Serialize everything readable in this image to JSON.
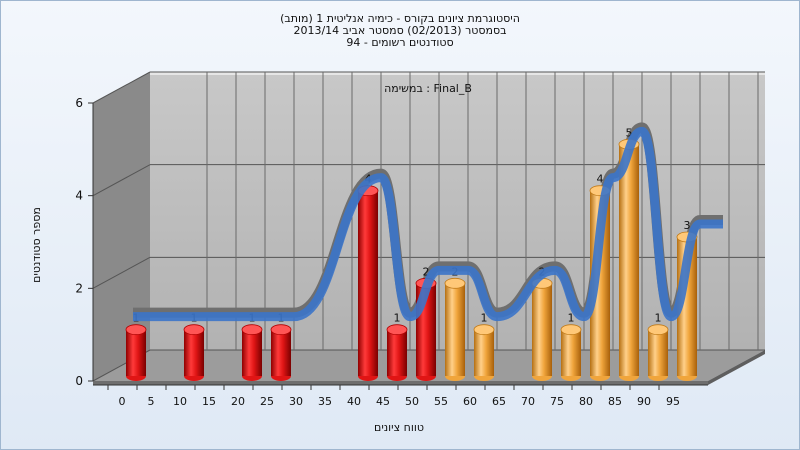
{
  "chart_data": {
    "type": "bar",
    "title_lines": [
      "היסטוגרמת ציונים בקורס - כימיה אנליטית 1 (מותב)",
      "בסמסטר  (02/2013)  סמסטר אביב 2013/14",
      "סטודנטים רשומים - 94"
    ],
    "inner_label": "במשימה : Final_B",
    "xlabel": "טווח ציונים",
    "ylabel": "מספר סטודנטים",
    "x_ticks": [
      "0",
      "5",
      "10",
      "15",
      "20",
      "25",
      "30",
      "35",
      "40",
      "45",
      "50",
      "55",
      "60",
      "65",
      "70",
      "75",
      "80",
      "85",
      "90",
      "95"
    ],
    "y_ticks": [
      "0",
      "2",
      "4",
      "6"
    ],
    "ylim": [
      0,
      6
    ],
    "grid": true,
    "bars": [
      {
        "x": 0,
        "value": 1,
        "label": "1",
        "color": "#e01515"
      },
      {
        "x": 10,
        "value": 1,
        "label": "1",
        "color": "#e01515"
      },
      {
        "x": 20,
        "value": 1,
        "label": "1",
        "color": "#e01515"
      },
      {
        "x": 25,
        "value": 1,
        "label": "1",
        "color": "#e01515"
      },
      {
        "x": 40,
        "value": 4,
        "label": "4",
        "color": "#e01515"
      },
      {
        "x": 45,
        "value": 1,
        "label": "1",
        "color": "#e01515"
      },
      {
        "x": 50,
        "value": 2,
        "label": "2",
        "color": "#e01515"
      },
      {
        "x": 55,
        "value": 2,
        "label": "2",
        "color": "#f0a53c"
      },
      {
        "x": 60,
        "value": 1,
        "label": "1",
        "color": "#f0a53c"
      },
      {
        "x": 70,
        "value": 2,
        "label": "2",
        "color": "#f0a53c"
      },
      {
        "x": 75,
        "value": 1,
        "label": "1",
        "color": "#f0a53c"
      },
      {
        "x": 80,
        "value": 4,
        "label": "4",
        "color": "#f0a53c"
      },
      {
        "x": 85,
        "value": 5,
        "label": "5",
        "color": "#f0a53c"
      },
      {
        "x": 90,
        "value": 1,
        "label": "1",
        "color": "#f0a53c"
      },
      {
        "x": 95,
        "value": 3,
        "label": "3",
        "color": "#f0a53c"
      }
    ],
    "colors": {
      "fail": "#e01515",
      "pass": "#f0a53c",
      "curve_front": "#3b74c9",
      "curve_back": "#6f6f6f",
      "wall": "#bdbdbd",
      "side_wall": "#8a8a8a"
    }
  }
}
